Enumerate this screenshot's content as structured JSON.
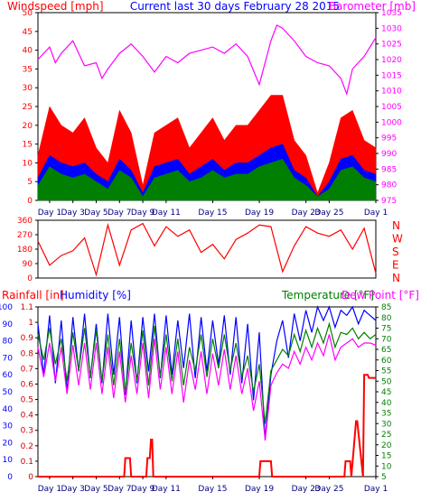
{
  "colors": {
    "red": "#ff0000",
    "green": "#007f00",
    "blue": "#0000ff",
    "magenta": "#ff00ff",
    "darkred": "#cc0000",
    "bg": "#ffffff",
    "frame": "#000000"
  },
  "chart_data": [
    {
      "type": "area",
      "title_left": "Windspeed [mph]",
      "title_center": "Current last 30 days February 28 2015",
      "title_right": "Barometer [mb]",
      "x_ticks": [
        "Day 1",
        "Day 3",
        "Day 5",
        "Day 7",
        "Day 9",
        "Day 11",
        "Day 15",
        "Day 19",
        "Day 23",
        "Day 25",
        "Day 1"
      ],
      "x_tick_days": [
        1,
        3,
        5,
        7,
        9,
        11,
        15,
        19,
        23,
        25,
        29
      ],
      "xlim": [
        0,
        29
      ],
      "y_left": {
        "ylim": [
          0,
          50
        ],
        "ticks": [
          "0",
          "5",
          "10",
          "15",
          "20",
          "25",
          "30",
          "35",
          "40",
          "45",
          "50"
        ]
      },
      "y_right": {
        "ylim": [
          975,
          1035
        ],
        "ticks": [
          "975",
          "980",
          "985",
          "990",
          "995",
          "1000",
          "1005",
          "1010",
          "1015",
          "1020",
          "1025",
          "1030",
          "1035"
        ]
      },
      "series": [
        {
          "color": "#ff0000",
          "x": [
            0,
            1,
            2,
            3,
            4,
            5,
            6,
            7,
            8,
            9,
            10,
            11,
            12,
            13,
            14,
            15,
            16,
            17,
            18,
            19,
            20,
            21,
            22,
            23,
            24,
            25,
            26,
            27,
            28,
            29
          ],
          "values": [
            12,
            25,
            20,
            18,
            22,
            14,
            10,
            24,
            18,
            4,
            18,
            20,
            22,
            14,
            18,
            22,
            16,
            20,
            20,
            24,
            28,
            28,
            16,
            12,
            2,
            10,
            22,
            24,
            16,
            14
          ]
        },
        {
          "color": "#0000ff",
          "x": [
            0,
            1,
            2,
            3,
            4,
            5,
            6,
            7,
            8,
            9,
            10,
            11,
            12,
            13,
            14,
            15,
            16,
            17,
            18,
            19,
            20,
            21,
            22,
            23,
            24,
            25,
            26,
            27,
            28,
            29
          ],
          "values": [
            6,
            12,
            10,
            9,
            10,
            7,
            5,
            11,
            8,
            2,
            9,
            10,
            11,
            7,
            9,
            11,
            8,
            10,
            10,
            12,
            14,
            15,
            8,
            6,
            1,
            5,
            11,
            12,
            8,
            7
          ]
        },
        {
          "color": "#007f00",
          "x": [
            0,
            1,
            2,
            3,
            4,
            5,
            6,
            7,
            8,
            9,
            10,
            11,
            12,
            13,
            14,
            15,
            16,
            17,
            18,
            19,
            20,
            21,
            22,
            23,
            24,
            25,
            26,
            27,
            28,
            29
          ],
          "values": [
            4,
            9,
            7,
            6,
            7,
            5,
            3,
            8,
            6,
            1,
            6,
            7,
            8,
            5,
            6,
            8,
            6,
            7,
            7,
            9,
            10,
            11,
            6,
            4,
            1,
            3,
            8,
            9,
            6,
            5
          ]
        },
        {
          "color": "#ff00ff",
          "axis": "right",
          "x": [
            0,
            1,
            1.5,
            2,
            3,
            3.5,
            4,
            5,
            5.5,
            6,
            7,
            8,
            9,
            10,
            11,
            12,
            13,
            14,
            15,
            16,
            17,
            18,
            19,
            20,
            20.5,
            21,
            22,
            23,
            24,
            25,
            26,
            26.5,
            27,
            28,
            29
          ],
          "values": [
            1020,
            1024,
            1019,
            1022,
            1026,
            1022,
            1018,
            1019,
            1014,
            1017,
            1022,
            1025,
            1021,
            1016,
            1021,
            1019,
            1022,
            1023,
            1024,
            1022,
            1025,
            1021,
            1012,
            1026,
            1031,
            1030,
            1026,
            1021,
            1019,
            1018,
            1014,
            1009,
            1017,
            1021,
            1027
          ]
        }
      ]
    },
    {
      "type": "line",
      "y_left": {
        "ylim": [
          0,
          360
        ],
        "ticks": [
          "0",
          "90",
          "180",
          "270",
          "360"
        ]
      },
      "y_right_labels": [
        "N",
        "W",
        "S",
        "E",
        "N"
      ],
      "xlim": [
        0,
        29
      ],
      "series": [
        {
          "color": "#ff0000",
          "x": [
            0,
            1,
            2,
            3,
            4,
            5,
            6,
            7,
            8,
            9,
            10,
            11,
            12,
            13,
            14,
            15,
            16,
            17,
            18,
            19,
            20,
            21,
            22,
            23,
            24,
            25,
            26,
            27,
            28,
            29
          ],
          "values": [
            230,
            80,
            140,
            170,
            250,
            20,
            330,
            80,
            300,
            340,
            200,
            320,
            260,
            300,
            160,
            210,
            120,
            240,
            280,
            330,
            320,
            40,
            200,
            320,
            280,
            260,
            300,
            180,
            310,
            30
          ]
        }
      ]
    },
    {
      "type": "line",
      "title_left_1": "Rainfall [in]",
      "title_left_2": "Humidity [%]",
      "title_right_1": "Temperature [°F]",
      "title_right_2": "Dew Point [°F]",
      "x_ticks": [
        "Day 1",
        "Day 3",
        "Day 5",
        "Day 7",
        "Day 9",
        "Day 11",
        "Day 15",
        "Day 19",
        "Day 23",
        "Day 25",
        "Day 1"
      ],
      "x_tick_days": [
        1,
        3,
        5,
        7,
        9,
        11,
        15,
        19,
        23,
        25,
        29
      ],
      "xlim": [
        0,
        29
      ],
      "y_humidity": {
        "ylim": [
          0,
          100
        ],
        "ticks": [
          "0",
          "10",
          "20",
          "30",
          "40",
          "50",
          "60",
          "70",
          "80",
          "90",
          "100"
        ]
      },
      "y_rain": {
        "ylim": [
          0,
          1.1
        ],
        "ticks": [
          "0",
          "0.1",
          "0.2",
          "0.3",
          "0.4",
          "0.5",
          "0.6",
          "0.7",
          "0.8",
          "0.9",
          "1",
          "1.1"
        ]
      },
      "y_temp": {
        "ylim": [
          5,
          85
        ],
        "ticks": [
          "5",
          "10",
          "15",
          "20",
          "25",
          "30",
          "35",
          "40",
          "45",
          "50",
          "55",
          "60",
          "65",
          "70",
          "75",
          "80",
          "85"
        ]
      },
      "series": [
        {
          "color": "#0000ff",
          "axis": "humidity",
          "x": [
            0,
            0.5,
            1,
            1.5,
            2,
            2.5,
            3,
            3.5,
            4,
            4.5,
            5,
            5.5,
            6,
            6.5,
            7,
            7.5,
            8,
            8.5,
            9,
            9.5,
            10,
            10.5,
            11,
            11.5,
            12,
            12.5,
            13,
            13.5,
            14,
            14.5,
            15,
            15.5,
            16,
            16.5,
            17,
            17.5,
            18,
            18.5,
            19,
            19.5,
            20,
            20.5,
            21,
            21.5,
            22,
            22.5,
            23,
            23.5,
            24,
            24.5,
            25,
            25.5,
            26,
            26.5,
            27,
            27.5,
            28,
            28.5,
            29
          ],
          "values": [
            90,
            60,
            95,
            55,
            92,
            50,
            94,
            62,
            96,
            58,
            90,
            55,
            96,
            60,
            94,
            48,
            92,
            55,
            94,
            62,
            96,
            58,
            95,
            60,
            92,
            64,
            96,
            58,
            94,
            62,
            92,
            66,
            95,
            60,
            94,
            55,
            90,
            45,
            85,
            22,
            60,
            80,
            92,
            70,
            96,
            80,
            98,
            85,
            100,
            92,
            100,
            88,
            98,
            95,
            100,
            90,
            98,
            95,
            92
          ]
        },
        {
          "color": "#007f00",
          "axis": "temp",
          "x": [
            0,
            0.5,
            1,
            1.5,
            2,
            2.5,
            3,
            3.5,
            4,
            4.5,
            5,
            5.5,
            6,
            6.5,
            7,
            7.5,
            8,
            8.5,
            9,
            9.5,
            10,
            10.5,
            11,
            11.5,
            12,
            12.5,
            13,
            13.5,
            14,
            14.5,
            15,
            15.5,
            16,
            16.5,
            17,
            17.5,
            18,
            18.5,
            19,
            19.5,
            20,
            20.5,
            21,
            21.5,
            22,
            22.5,
            23,
            23.5,
            24,
            24.5,
            25,
            25.5,
            26,
            26.5,
            27,
            27.5,
            28,
            28.5,
            29
          ],
          "values": [
            72,
            60,
            75,
            58,
            70,
            50,
            73,
            55,
            75,
            52,
            74,
            50,
            72,
            48,
            70,
            45,
            68,
            50,
            74,
            48,
            76,
            52,
            72,
            50,
            70,
            48,
            66,
            55,
            72,
            52,
            70,
            56,
            72,
            55,
            68,
            52,
            62,
            45,
            58,
            30,
            55,
            60,
            65,
            62,
            72,
            64,
            74,
            66,
            75,
            68,
            77,
            66,
            73,
            72,
            75,
            70,
            73,
            70,
            72
          ]
        },
        {
          "color": "#ff00ff",
          "axis": "temp",
          "x": [
            0,
            0.5,
            1,
            1.5,
            2,
            2.5,
            3,
            3.5,
            4,
            4.5,
            5,
            5.5,
            6,
            6.5,
            7,
            7.5,
            8,
            8.5,
            9,
            9.5,
            10,
            10.5,
            11,
            11.5,
            12,
            12.5,
            13,
            13.5,
            14,
            14.5,
            15,
            15.5,
            16,
            16.5,
            17,
            17.5,
            18,
            18.5,
            19,
            19.5,
            20,
            20.5,
            21,
            21.5,
            22,
            22.5,
            23,
            23.5,
            24,
            24.5,
            25,
            25.5,
            26,
            26.5,
            27,
            27.5,
            28,
            28.5,
            29
          ],
          "values": [
            66,
            52,
            68,
            50,
            66,
            44,
            67,
            48,
            68,
            46,
            68,
            44,
            66,
            42,
            64,
            40,
            62,
            44,
            68,
            42,
            70,
            46,
            66,
            44,
            64,
            40,
            60,
            46,
            64,
            44,
            63,
            48,
            65,
            46,
            62,
            44,
            56,
            36,
            50,
            22,
            48,
            54,
            58,
            56,
            64,
            58,
            66,
            60,
            68,
            62,
            72,
            60,
            66,
            68,
            70,
            66,
            68,
            68,
            67
          ]
        },
        {
          "color": "#ff0000",
          "axis": "rain",
          "x": [
            0,
            7.4,
            7.5,
            7.9,
            8.0,
            9.3,
            9.4,
            9.6,
            9.7,
            9.8,
            9.9,
            19.0,
            19.1,
            19.4,
            19.5,
            20.0,
            20.1,
            26.3,
            26.4,
            26.8,
            26.9,
            27.3,
            27.4,
            27.9,
            28.0,
            28.3,
            28.4,
            29
          ],
          "values": [
            0,
            0,
            0.12,
            0.12,
            0,
            0,
            0.12,
            0.12,
            0.24,
            0.24,
            0,
            0,
            0.1,
            0.1,
            0.1,
            0.1,
            0,
            0,
            0.1,
            0.1,
            0,
            0.36,
            0.36,
            0,
            0.66,
            0.66,
            0.64,
            0.64
          ]
        }
      ]
    }
  ]
}
